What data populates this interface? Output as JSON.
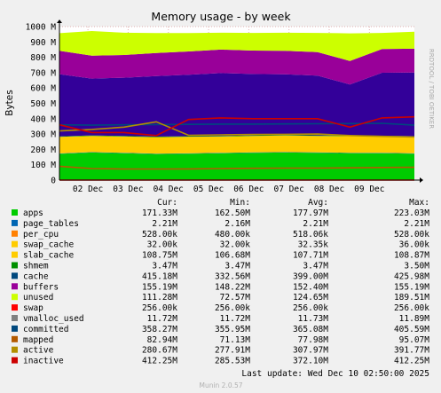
{
  "chart_data": {
    "type": "area",
    "title": "Memory usage - by week",
    "ylabel": "Bytes",
    "side_text": "RRDTOOL / TOBI OETIKER",
    "y_ticks": [
      "0",
      "100 M",
      "200 M",
      "300 M",
      "400 M",
      "500 M",
      "600 M",
      "700 M",
      "800 M",
      "900 M",
      "1000 M"
    ],
    "ylim": [
      0,
      1000
    ],
    "y_unit": "M",
    "x_ticks": [
      "02 Dec",
      "03 Dec",
      "04 Dec",
      "05 Dec",
      "06 Dec",
      "07 Dec",
      "08 Dec",
      "09 Dec"
    ],
    "x_range": [
      "2025-12-01 07:00",
      "2025-12-10 02:50"
    ],
    "x_tick_dates": [
      "2025-12-02",
      "2025-12-03",
      "2025-12-04",
      "2025-12-05",
      "2025-12-06",
      "2025-12-07",
      "2025-12-08",
      "2025-12-09"
    ],
    "grid": true,
    "legend_position": "bottom",
    "stack_colors": {
      "apps": "#00cc00",
      "page_tables": "#0066b3",
      "per_cpu": "#ff8000",
      "swap_cache": "#ffcc00",
      "slab_cache": "#ffcc00",
      "shmem": "#00a000",
      "cache": "#330099",
      "buffers": "#990099",
      "unused": "#ccff00"
    },
    "stacked_series_mean": [
      {
        "name": "apps",
        "values": [
          171,
          180,
          175,
          170,
          172,
          175,
          178,
          180,
          178,
          176,
          175,
          172
        ]
      },
      {
        "name": "page_tables",
        "values": [
          2.2,
          2.2,
          2.2,
          2.2,
          2.2,
          2.2,
          2.2,
          2.2,
          2.2,
          2.2,
          2.2,
          2.2
        ]
      },
      {
        "name": "per_cpu",
        "values": [
          0.5,
          0.5,
          0.5,
          0.5,
          0.5,
          0.5,
          0.5,
          0.5,
          0.5,
          0.5,
          0.5,
          0.5
        ]
      },
      {
        "name": "slab_cache",
        "values": [
          108,
          105,
          106,
          107,
          108,
          106,
          107,
          108,
          107,
          108,
          108,
          108
        ]
      },
      {
        "name": "shmem",
        "values": [
          3.5,
          3.5,
          3.5,
          3.5,
          3.5,
          3.5,
          3.5,
          3.5,
          3.5,
          3.5,
          3.5,
          3.5
        ]
      },
      {
        "name": "cache",
        "values": [
          405,
          370,
          380,
          395,
          400,
          410,
          400,
          395,
          390,
          333,
          410,
          415
        ]
      },
      {
        "name": "buffers",
        "values": [
          152,
          150,
          148,
          150,
          152,
          153,
          153,
          153,
          153,
          153,
          155,
          155
        ]
      },
      {
        "name": "unused",
        "values": [
          115,
          160,
          145,
          130,
          120,
          110,
          115,
          118,
          125,
          180,
          105,
          111
        ]
      }
    ],
    "line_series": [
      {
        "name": "swap",
        "color": "#ff0000",
        "values": [
          0.25,
          0.25,
          0.25,
          0.25,
          0.25,
          0.25,
          0.25,
          0.25,
          0.25,
          0.25,
          0.25,
          0.25
        ]
      },
      {
        "name": "committed",
        "color": "#00487d",
        "values": [
          360,
          358,
          360,
          362,
          363,
          365,
          365,
          366,
          367,
          368,
          370,
          358
        ]
      },
      {
        "name": "mapped",
        "color": "#b35a00",
        "values": [
          90,
          75,
          72,
          72,
          73,
          75,
          77,
          78,
          78,
          80,
          82,
          83
        ]
      },
      {
        "name": "active",
        "color": "#b38f00",
        "values": [
          320,
          330,
          345,
          380,
          292,
          295,
          297,
          298,
          300,
          290,
          285,
          281
        ]
      },
      {
        "name": "inactive",
        "color": "#cc0000",
        "values": [
          360,
          310,
          310,
          290,
          395,
          405,
          400,
          400,
          400,
          345,
          405,
          412
        ]
      }
    ],
    "legend": {
      "headers": [
        "Cur:",
        "Min:",
        "Avg:",
        "Max:"
      ],
      "rows": [
        {
          "name": "apps",
          "color": "#00cc00",
          "cur": "171.33M",
          "min": "162.50M",
          "avg": "177.97M",
          "max": "223.03M"
        },
        {
          "name": "page_tables",
          "color": "#0066b3",
          "cur": "2.21M",
          "min": "2.16M",
          "avg": "2.21M",
          "max": "2.21M"
        },
        {
          "name": "per_cpu",
          "color": "#ff8000",
          "cur": "528.00k",
          "min": "480.00k",
          "avg": "518.06k",
          "max": "528.00k"
        },
        {
          "name": "swap_cache",
          "color": "#ffcc00",
          "cur": "32.00k",
          "min": "32.00k",
          "avg": "32.35k",
          "max": "36.00k"
        },
        {
          "name": "slab_cache",
          "color": "#ffcc00",
          "cur": "108.75M",
          "min": "106.68M",
          "avg": "107.71M",
          "max": "108.87M"
        },
        {
          "name": "shmem",
          "color": "#008f00",
          "cur": "3.47M",
          "min": "3.47M",
          "avg": "3.47M",
          "max": "3.50M"
        },
        {
          "name": "cache",
          "color": "#00487d",
          "cur": "415.18M",
          "min": "332.56M",
          "avg": "399.00M",
          "max": "425.98M"
        },
        {
          "name": "buffers",
          "color": "#990099",
          "cur": "155.19M",
          "min": "148.22M",
          "avg": "152.40M",
          "max": "155.19M"
        },
        {
          "name": "unused",
          "color": "#ccff00",
          "cur": "111.28M",
          "min": "72.57M",
          "avg": "124.65M",
          "max": "189.51M"
        },
        {
          "name": "swap",
          "color": "#ff0000",
          "cur": "256.00k",
          "min": "256.00k",
          "avg": "256.00k",
          "max": "256.00k"
        },
        {
          "name": "vmalloc_used",
          "color": "#808080",
          "cur": "11.72M",
          "min": "11.72M",
          "avg": "11.73M",
          "max": "11.89M"
        },
        {
          "name": "committed",
          "color": "#00487d",
          "cur": "358.27M",
          "min": "355.95M",
          "avg": "365.08M",
          "max": "405.59M"
        },
        {
          "name": "mapped",
          "color": "#b35a00",
          "cur": "82.94M",
          "min": "71.13M",
          "avg": "77.98M",
          "max": "95.07M"
        },
        {
          "name": "active",
          "color": "#b38f00",
          "cur": "280.67M",
          "min": "277.91M",
          "avg": "307.97M",
          "max": "391.77M"
        },
        {
          "name": "inactive",
          "color": "#cc0000",
          "cur": "412.25M",
          "min": "285.53M",
          "avg": "372.10M",
          "max": "412.25M"
        }
      ]
    },
    "footer_update": "Last update: Wed Dec 10 02:50:00 2025",
    "footer_version": "Munin 2.0.57"
  }
}
